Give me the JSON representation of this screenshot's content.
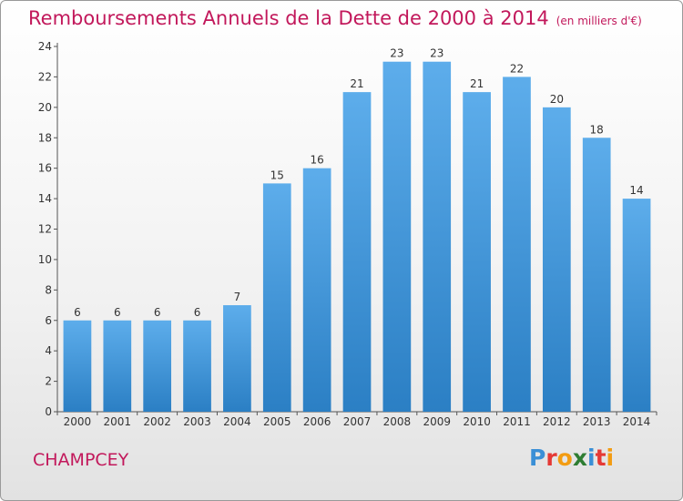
{
  "header": {
    "title": "Remboursements Annuels de la Dette de 2000 à 2014",
    "unit": "(en milliers d'€)"
  },
  "footer": {
    "city": "CHAMPCEY",
    "logo": {
      "text": "Proxiti",
      "letters": [
        {
          "ch": "P",
          "color": "#3a8fd6"
        },
        {
          "ch": "r",
          "color": "#e53935"
        },
        {
          "ch": "o",
          "color": "#f39c12"
        },
        {
          "ch": "x",
          "color": "#2e7d32"
        },
        {
          "ch": "i",
          "color": "#3a8fd6"
        },
        {
          "ch": "t",
          "color": "#e53935"
        },
        {
          "ch": "i",
          "color": "#f39c12"
        }
      ]
    }
  },
  "colors": {
    "bar_top": "#5dadeb",
    "bar_bottom": "#2b7fc4",
    "accent": "#c2185b"
  },
  "chart_data": {
    "type": "bar",
    "title": "Remboursements Annuels de la Dette de 2000 à 2014",
    "subtitle": "(en milliers d'€)",
    "xlabel": "",
    "ylabel": "",
    "categories": [
      "2000",
      "2001",
      "2002",
      "2003",
      "2004",
      "2005",
      "2006",
      "2007",
      "2008",
      "2009",
      "2010",
      "2011",
      "2012",
      "2013",
      "2014"
    ],
    "values": [
      6,
      6,
      6,
      6,
      7,
      15,
      16,
      21,
      23,
      23,
      21,
      22,
      20,
      18,
      14
    ],
    "ylim": [
      0,
      24
    ],
    "yticks": [
      0,
      2,
      4,
      6,
      8,
      10,
      12,
      14,
      16,
      18,
      20,
      22,
      24
    ],
    "grid": false,
    "data_labels": true
  }
}
